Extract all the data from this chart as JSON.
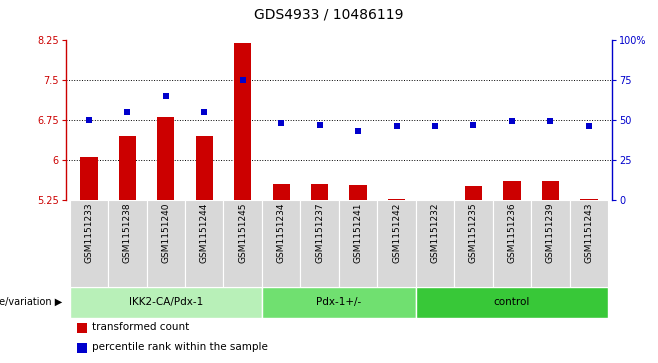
{
  "title": "GDS4933 / 10486119",
  "samples": [
    "GSM1151233",
    "GSM1151238",
    "GSM1151240",
    "GSM1151244",
    "GSM1151245",
    "GSM1151234",
    "GSM1151237",
    "GSM1151241",
    "GSM1151242",
    "GSM1151232",
    "GSM1151235",
    "GSM1151236",
    "GSM1151239",
    "GSM1151243"
  ],
  "bar_values": [
    6.05,
    6.45,
    6.8,
    6.45,
    8.2,
    5.55,
    5.55,
    5.52,
    5.27,
    5.22,
    5.5,
    5.6,
    5.6,
    5.27
  ],
  "dot_values": [
    50,
    55,
    65,
    55,
    75,
    48,
    47,
    43,
    46,
    46,
    47,
    49,
    49,
    46
  ],
  "groups": [
    {
      "label": "IKK2-CA/Pdx-1",
      "start": 0,
      "end": 5,
      "color": "#b8f0b8"
    },
    {
      "label": "Pdx-1+/-",
      "start": 5,
      "end": 9,
      "color": "#70e070"
    },
    {
      "label": "control",
      "start": 9,
      "end": 14,
      "color": "#38c838"
    }
  ],
  "bar_color": "#cc0000",
  "dot_color": "#0000cc",
  "ylim_left": [
    5.25,
    8.25
  ],
  "ylim_right": [
    0,
    100
  ],
  "yticks_left": [
    5.25,
    6.0,
    6.75,
    7.5,
    8.25
  ],
  "ytick_labels_left": [
    "5.25",
    "6",
    "6.75",
    "7.5",
    "8.25"
  ],
  "yticks_right": [
    0,
    25,
    50,
    75,
    100
  ],
  "ytick_labels_right": [
    "0",
    "25",
    "50",
    "75",
    "100%"
  ],
  "hlines": [
    6.0,
    6.75,
    7.5
  ],
  "bar_width": 0.45,
  "legend_items": [
    {
      "color": "#cc0000",
      "label": "transformed count"
    },
    {
      "color": "#0000cc",
      "label": "percentile rank within the sample"
    }
  ],
  "genotype_label": "genotype/variation",
  "title_fontsize": 10,
  "tick_fontsize": 7,
  "label_fontsize": 7.5,
  "sample_fontsize": 6.5
}
